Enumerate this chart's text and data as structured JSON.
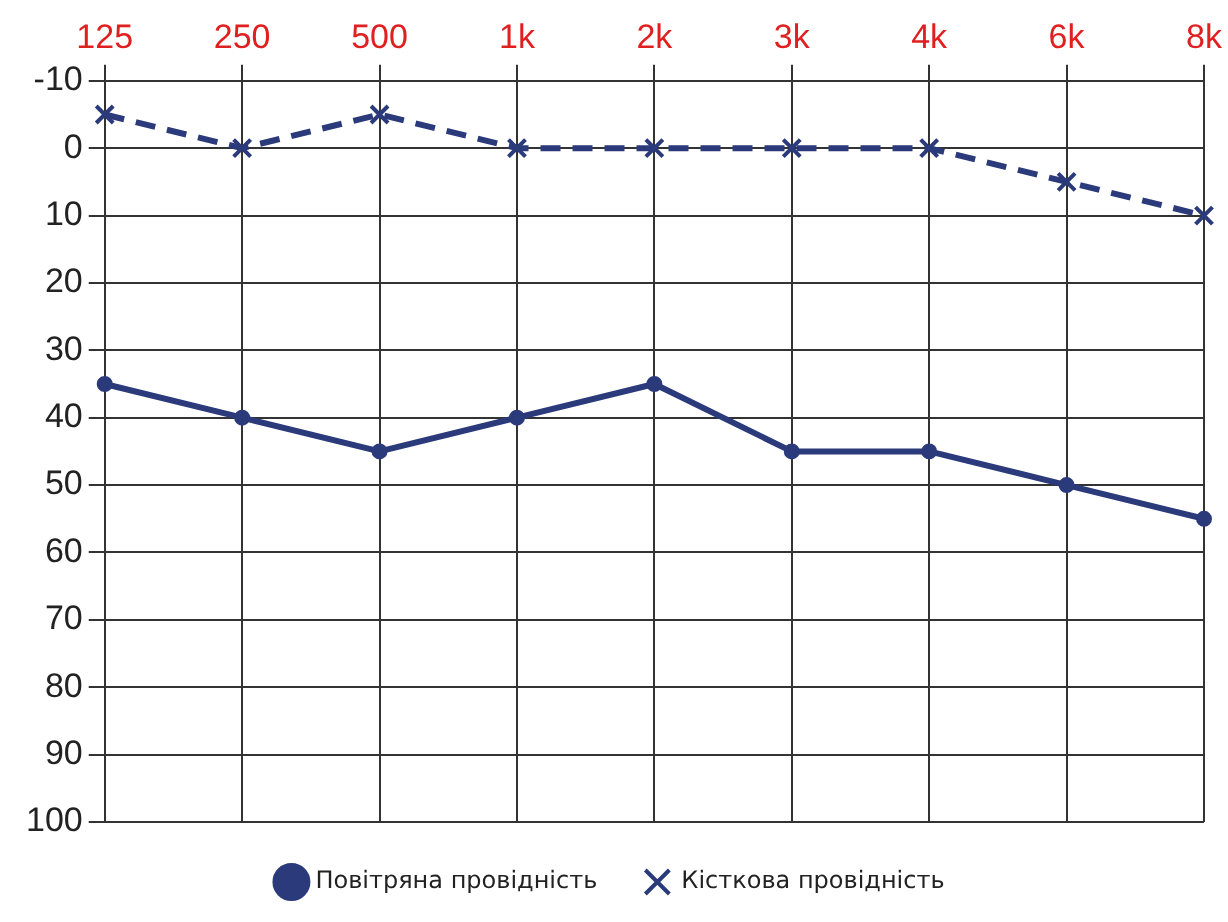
{
  "chart_data": {
    "type": "line",
    "categories": [
      "125",
      "250",
      "500",
      "1k",
      "2k",
      "3k",
      "4k",
      "6k",
      "8k"
    ],
    "series": [
      {
        "name": "Повітряна провідність",
        "color": "#2b3a7a",
        "values": [
          35,
          40,
          45,
          40,
          35,
          45,
          45,
          50,
          55
        ],
        "marker": "circle",
        "line_style": "solid"
      },
      {
        "name": "Кісткова провідність",
        "color": "#2b3a7a",
        "values": [
          -5,
          0,
          -5,
          0,
          0,
          0,
          0,
          5,
          10
        ],
        "marker": "cross",
        "line_style": "dashed"
      }
    ],
    "ylim": [
      100,
      -10
    ],
    "yticks": [
      -10,
      0,
      10,
      20,
      30,
      40,
      50,
      60,
      70,
      80,
      90,
      100
    ],
    "grid": true,
    "legend": "bottom"
  }
}
